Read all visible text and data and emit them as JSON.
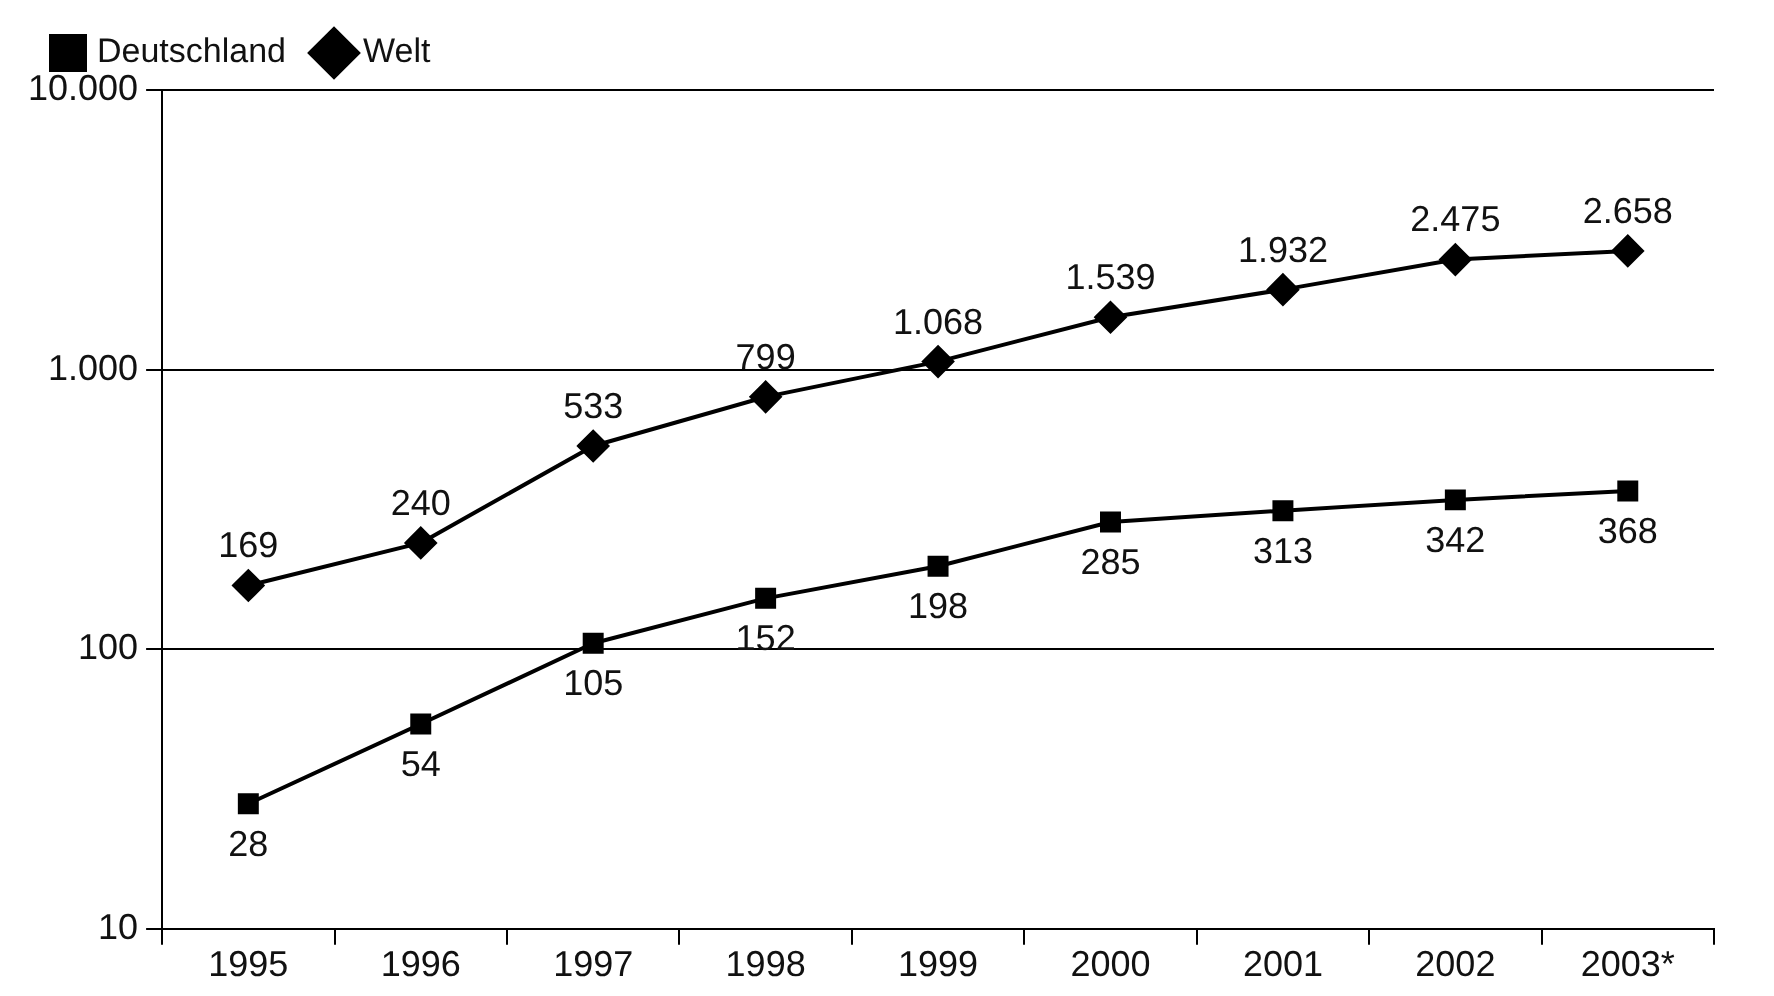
{
  "chart_data": {
    "type": "line",
    "categories": [
      "1995",
      "1996",
      "1997",
      "1998",
      "1999",
      "2000",
      "2001",
      "2002",
      "2003*"
    ],
    "series": [
      {
        "name": "Deutschland",
        "color": "#000000",
        "marker": "square",
        "values": [
          28,
          54,
          105,
          152,
          198,
          285,
          313,
          342,
          368
        ],
        "value_labels": [
          "28",
          "54",
          "105",
          "152",
          "198",
          "285",
          "313",
          "342",
          "368"
        ]
      },
      {
        "name": "Welt",
        "color": "#000000",
        "marker": "diamond",
        "values": [
          169,
          240,
          533,
          799,
          1068,
          1539,
          1932,
          2475,
          2658
        ],
        "value_labels": [
          "169",
          "240",
          "533",
          "799",
          "1.068",
          "1.539",
          "1.932",
          "2.475",
          "2.658"
        ]
      }
    ],
    "log": "y",
    "ylim": [
      10,
      10000
    ],
    "yticks": [
      10,
      100,
      {
        "value": 1000,
        "label": "1.000"
      },
      {
        "value": 10000,
        "label": "10.000"
      }
    ],
    "grid": "y",
    "legend": "top left",
    "line_style": "solid"
  }
}
